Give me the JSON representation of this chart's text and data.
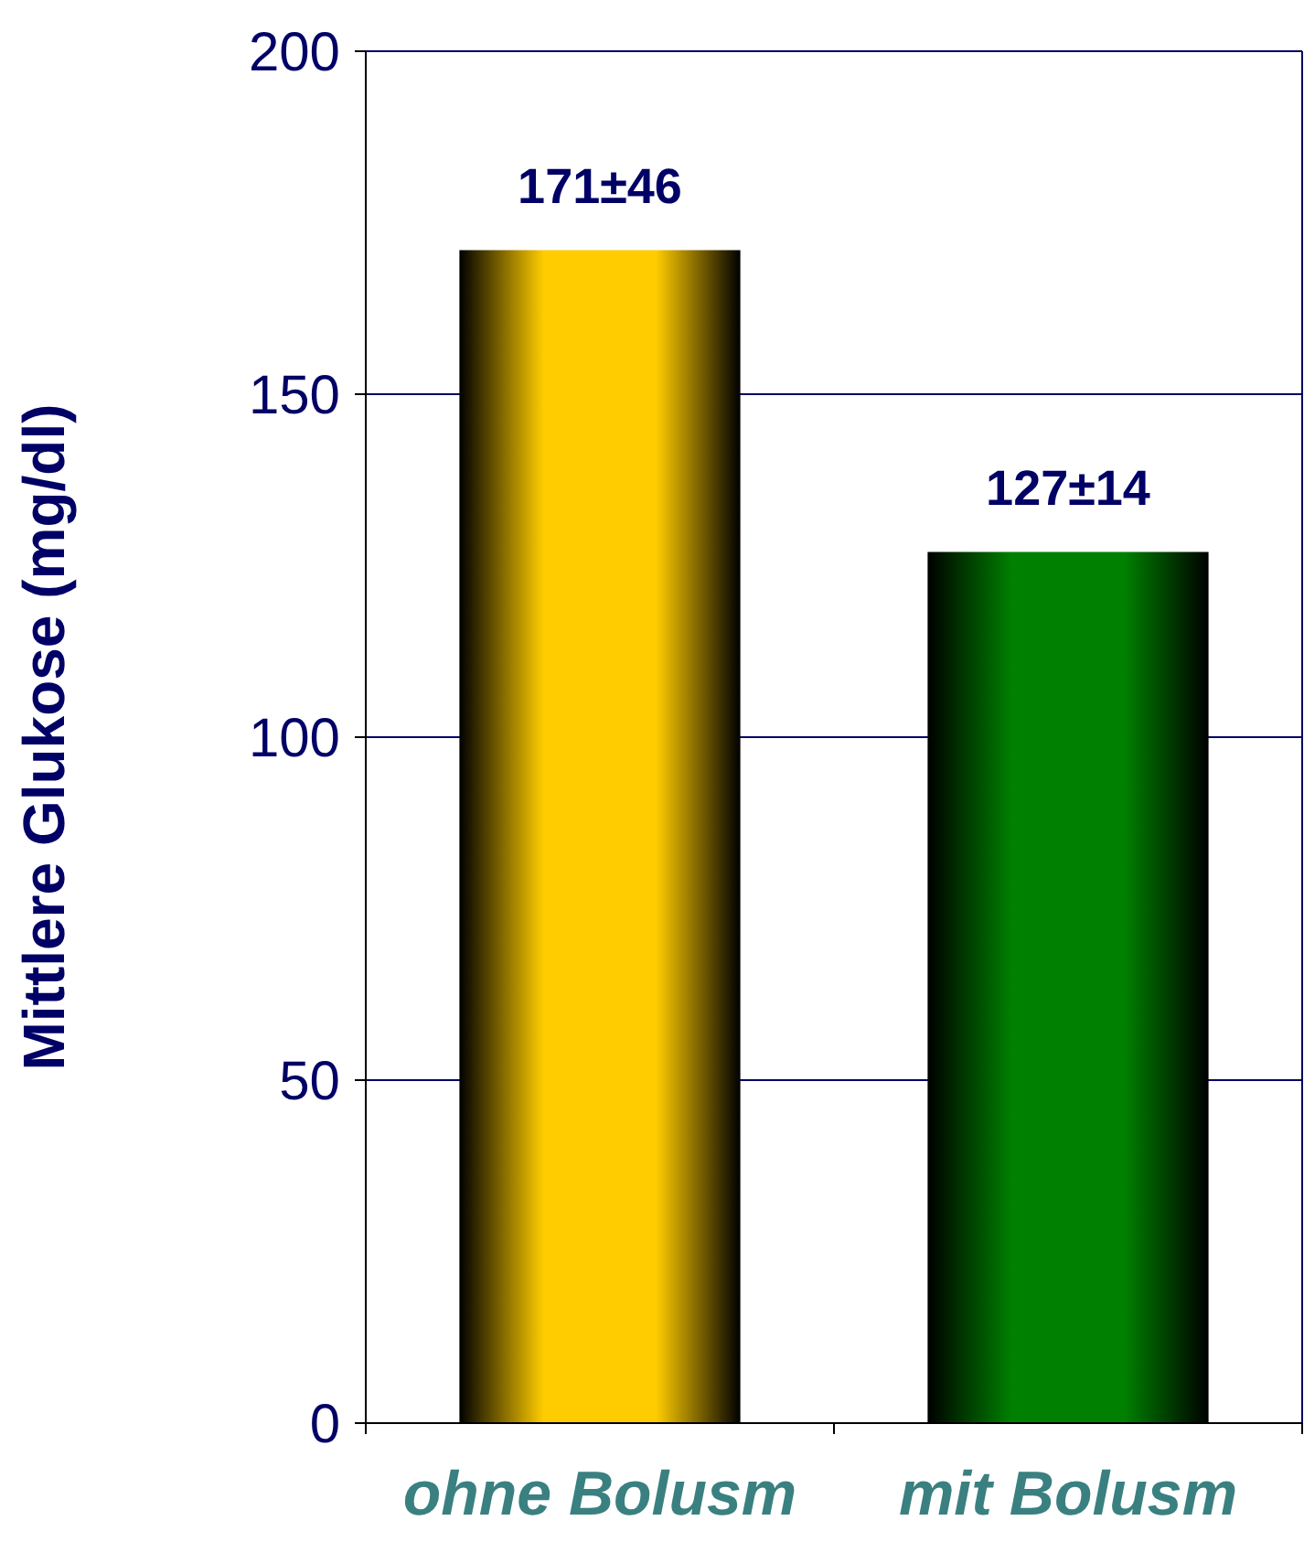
{
  "chart_data": {
    "type": "bar",
    "ylabel": "Mittlere Glukose (mg/dl)",
    "categories": [
      "ohne Bolusm",
      "mit Bolusm"
    ],
    "values": [
      171,
      127
    ],
    "colors": [
      "#ffcc00",
      "#008000"
    ],
    "value_labels": [
      "171±46",
      "127±14"
    ],
    "ylim": [
      0,
      200
    ],
    "yticks": [
      0,
      50,
      100,
      150,
      200
    ],
    "grid": "y"
  }
}
